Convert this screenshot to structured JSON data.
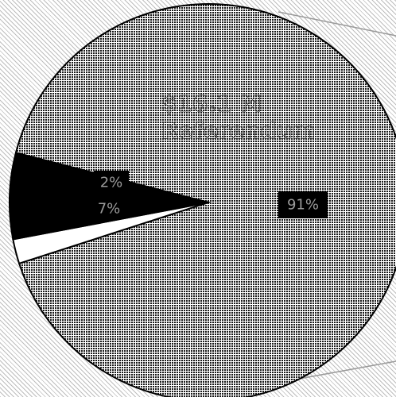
{
  "chart_data": {
    "type": "pie",
    "slices": [
      {
        "label": "91%",
        "value": 91
      },
      {
        "label": "2%",
        "value": 2
      },
      {
        "label": "7%",
        "value": 7
      }
    ],
    "annotation": [
      "$16.1 M",
      "Referendum"
    ]
  }
}
